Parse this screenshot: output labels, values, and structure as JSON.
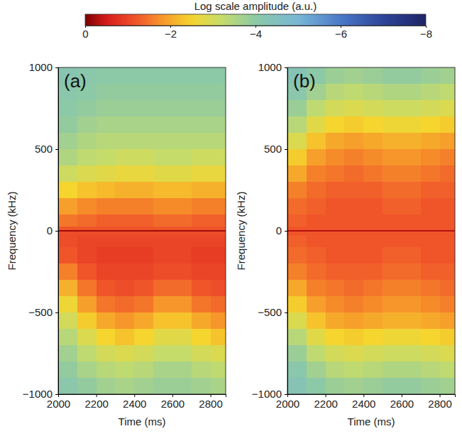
{
  "chart_data": [
    {
      "type": "heatmap",
      "title": "(a)",
      "x_label": "Time (ms)",
      "y_label": "Frequency (kHz)",
      "x": [
        2050,
        2150,
        2250,
        2350,
        2450,
        2550,
        2650,
        2750,
        2850
      ],
      "y": [
        -950,
        -850,
        -750,
        -650,
        -550,
        -450,
        -350,
        -250,
        -150,
        -50,
        -8,
        0,
        8,
        50,
        150,
        250,
        350,
        450,
        550,
        650,
        750,
        850,
        950
      ],
      "values": [
        [
          -4.1,
          -3.9,
          -3.7,
          -3.6,
          -3.7,
          -3.8,
          -3.8,
          -3.7,
          -3.6
        ],
        [
          -3.9,
          -3.6,
          -3.4,
          -3.3,
          -3.4,
          -3.6,
          -3.6,
          -3.4,
          -3.3
        ],
        [
          -3.7,
          -3.3,
          -3.0,
          -2.9,
          -3.0,
          -3.2,
          -3.2,
          -3.0,
          -2.9
        ],
        [
          -3.4,
          -2.9,
          -2.5,
          -2.3,
          -2.5,
          -2.8,
          -2.8,
          -2.5,
          -2.3
        ],
        [
          -3.0,
          -2.4,
          -2.0,
          -1.8,
          -2.0,
          -2.3,
          -2.3,
          -2.0,
          -1.8
        ],
        [
          -2.6,
          -1.9,
          -1.5,
          -1.4,
          -1.5,
          -1.8,
          -1.8,
          -1.5,
          -1.4
        ],
        [
          -2.1,
          -1.5,
          -1.2,
          -1.1,
          -1.2,
          -1.4,
          -1.4,
          -1.2,
          -1.1
        ],
        [
          -1.6,
          -1.2,
          -1.0,
          -1.0,
          -1.0,
          -1.1,
          -1.1,
          -1.0,
          -1.0
        ],
        [
          -1.2,
          -1.0,
          -0.9,
          -0.9,
          -0.9,
          -1.0,
          -1.0,
          -0.9,
          -0.9
        ],
        [
          -1.1,
          -1.0,
          -1.0,
          -1.0,
          -1.0,
          -1.0,
          -1.0,
          -1.0,
          -1.0
        ],
        [
          -1.1,
          -1.1,
          -1.1,
          -1.1,
          -1.1,
          -1.1,
          -1.1,
          -1.1,
          -1.1
        ],
        [
          -0.2,
          -0.2,
          -0.2,
          -0.2,
          -0.2,
          -0.2,
          -0.2,
          -0.2,
          -0.2
        ],
        [
          -1.2,
          -1.2,
          -1.2,
          -1.2,
          -1.2,
          -1.2,
          -1.2,
          -1.2,
          -1.2
        ],
        [
          -1.5,
          -1.4,
          -1.3,
          -1.3,
          -1.3,
          -1.4,
          -1.4,
          -1.3,
          -1.3
        ],
        [
          -1.9,
          -1.7,
          -1.6,
          -1.6,
          -1.6,
          -1.7,
          -1.7,
          -1.6,
          -1.6
        ],
        [
          -2.5,
          -2.3,
          -2.2,
          -2.1,
          -2.1,
          -2.2,
          -2.2,
          -2.1,
          -2.1
        ],
        [
          -3.1,
          -2.9,
          -2.8,
          -2.7,
          -2.7,
          -2.8,
          -2.8,
          -2.7,
          -2.7
        ],
        [
          -3.5,
          -3.3,
          -3.2,
          -3.1,
          -3.1,
          -3.2,
          -3.2,
          -3.1,
          -3.1
        ],
        [
          -3.7,
          -3.5,
          -3.4,
          -3.4,
          -3.4,
          -3.4,
          -3.4,
          -3.4,
          -3.4
        ],
        [
          -3.9,
          -3.7,
          -3.6,
          -3.6,
          -3.6,
          -3.6,
          -3.6,
          -3.6,
          -3.6
        ],
        [
          -4.0,
          -3.9,
          -3.8,
          -3.8,
          -3.8,
          -3.8,
          -3.8,
          -3.8,
          -3.8
        ],
        [
          -4.1,
          -4.0,
          -3.9,
          -3.9,
          -3.9,
          -3.9,
          -3.9,
          -3.9,
          -3.9
        ],
        [
          -4.2,
          -4.1,
          -4.0,
          -4.0,
          -4.0,
          -4.0,
          -4.0,
          -4.0,
          -4.0
        ]
      ],
      "xlim": [
        2000,
        2880
      ],
      "ylim": [
        -1000,
        1000
      ],
      "xticks": [
        2000,
        2200,
        2400,
        2600,
        2800
      ],
      "yticks": [
        {
          "value": -1000,
          "label": "−1000"
        },
        {
          "value": -500,
          "label": "−500"
        },
        0,
        500,
        1000
      ]
    },
    {
      "type": "heatmap",
      "title": "(b)",
      "x_label": "Time (ms)",
      "y_label": "Frequency (kHz)",
      "x": [
        2050,
        2150,
        2250,
        2350,
        2450,
        2550,
        2650,
        2750,
        2850
      ],
      "y": [
        -950,
        -850,
        -750,
        -650,
        -550,
        -450,
        -350,
        -250,
        -150,
        -50,
        -8,
        0,
        8,
        50,
        150,
        250,
        350,
        450,
        550,
        650,
        750,
        850,
        950
      ],
      "values": [
        [
          -4.3,
          -4.0,
          -3.8,
          -3.7,
          -3.8,
          -3.9,
          -3.9,
          -3.8,
          -3.7
        ],
        [
          -4.1,
          -3.7,
          -3.4,
          -3.3,
          -3.4,
          -3.5,
          -3.5,
          -3.4,
          -3.3
        ],
        [
          -3.8,
          -3.3,
          -3.0,
          -2.9,
          -3.0,
          -3.1,
          -3.1,
          -3.0,
          -2.9
        ],
        [
          -3.4,
          -2.8,
          -2.5,
          -2.4,
          -2.5,
          -2.6,
          -2.6,
          -2.5,
          -2.4
        ],
        [
          -2.9,
          -2.3,
          -2.0,
          -1.9,
          -2.0,
          -2.1,
          -2.1,
          -2.0,
          -1.9
        ],
        [
          -2.4,
          -1.9,
          -1.7,
          -1.6,
          -1.7,
          -1.8,
          -1.8,
          -1.7,
          -1.6
        ],
        [
          -2.0,
          -1.6,
          -1.5,
          -1.4,
          -1.5,
          -1.6,
          -1.6,
          -1.5,
          -1.4
        ],
        [
          -1.6,
          -1.4,
          -1.3,
          -1.3,
          -1.3,
          -1.4,
          -1.4,
          -1.3,
          -1.3
        ],
        [
          -1.4,
          -1.3,
          -1.2,
          -1.2,
          -1.2,
          -1.3,
          -1.3,
          -1.2,
          -1.2
        ],
        [
          -1.3,
          -1.2,
          -1.2,
          -1.2,
          -1.2,
          -1.2,
          -1.2,
          -1.2,
          -1.2
        ],
        [
          -1.2,
          -1.2,
          -1.2,
          -1.2,
          -1.2,
          -1.2,
          -1.2,
          -1.2,
          -1.2
        ],
        [
          -0.3,
          -0.3,
          -0.3,
          -0.3,
          -0.3,
          -0.3,
          -0.3,
          -0.3,
          -0.3
        ],
        [
          -1.2,
          -1.2,
          -1.2,
          -1.2,
          -1.2,
          -1.2,
          -1.2,
          -1.2,
          -1.2
        ],
        [
          -1.3,
          -1.2,
          -1.2,
          -1.2,
          -1.2,
          -1.2,
          -1.2,
          -1.2,
          -1.2
        ],
        [
          -1.4,
          -1.3,
          -1.2,
          -1.2,
          -1.2,
          -1.3,
          -1.3,
          -1.2,
          -1.2
        ],
        [
          -1.6,
          -1.4,
          -1.3,
          -1.3,
          -1.3,
          -1.4,
          -1.4,
          -1.3,
          -1.3
        ],
        [
          -2.0,
          -1.6,
          -1.5,
          -1.4,
          -1.5,
          -1.6,
          -1.6,
          -1.5,
          -1.4
        ],
        [
          -2.4,
          -1.9,
          -1.7,
          -1.6,
          -1.7,
          -1.8,
          -1.8,
          -1.7,
          -1.6
        ],
        [
          -2.9,
          -2.3,
          -2.0,
          -1.9,
          -2.0,
          -2.1,
          -2.1,
          -2.0,
          -1.9
        ],
        [
          -3.4,
          -2.8,
          -2.5,
          -2.4,
          -2.5,
          -2.6,
          -2.6,
          -2.5,
          -2.4
        ],
        [
          -3.8,
          -3.3,
          -3.0,
          -2.9,
          -3.0,
          -3.1,
          -3.1,
          -3.0,
          -2.9
        ],
        [
          -4.1,
          -3.7,
          -3.4,
          -3.3,
          -3.4,
          -3.5,
          -3.5,
          -3.4,
          -3.3
        ],
        [
          -4.3,
          -4.0,
          -3.8,
          -3.7,
          -3.8,
          -3.9,
          -3.9,
          -3.8,
          -3.7
        ]
      ],
      "xlim": [
        2000,
        2880
      ],
      "ylim": [
        -1000,
        1000
      ],
      "xticks": [
        2000,
        2200,
        2400,
        2600,
        2800
      ],
      "yticks": [
        {
          "value": -1000,
          "label": "−1000"
        },
        {
          "value": -500,
          "label": "−500"
        },
        0,
        500,
        1000
      ]
    }
  ],
  "colorbar": {
    "label": "Log scale amplitude (a.u.)",
    "range": [
      0,
      -8
    ],
    "ticks": [
      0,
      {
        "value": -2,
        "label": "−2"
      },
      {
        "value": -4,
        "label": "−4"
      },
      {
        "value": -6,
        "label": "−6"
      },
      {
        "value": -8,
        "label": "−8"
      }
    ]
  }
}
